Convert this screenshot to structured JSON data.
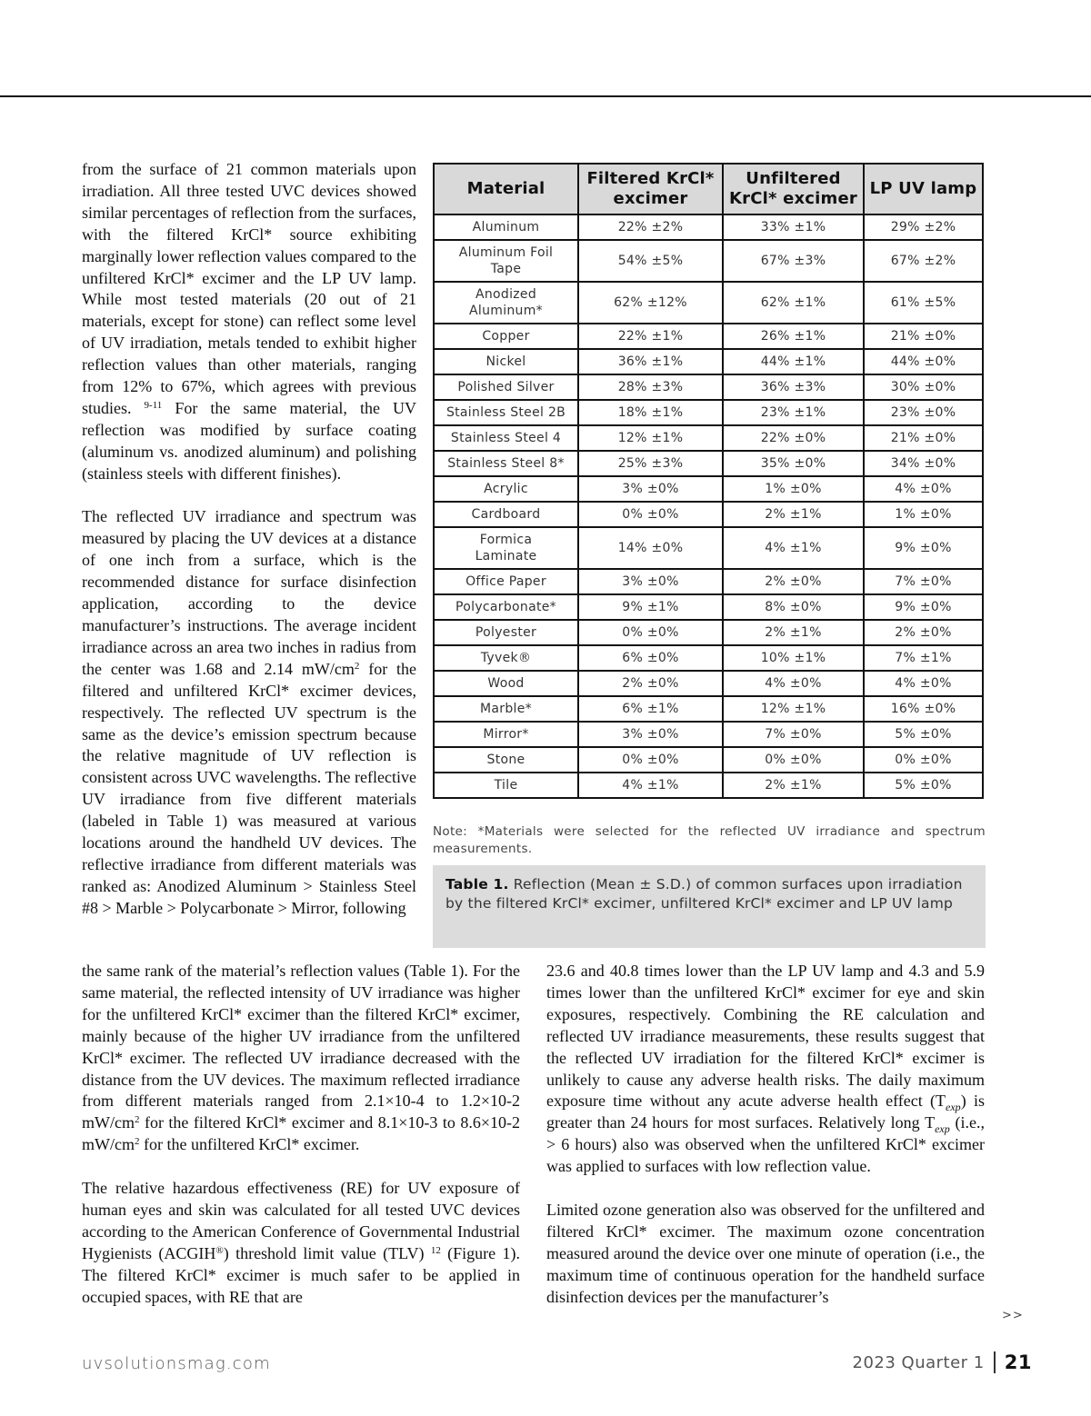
{
  "columns": {
    "colA": [
      [
        [
          "from the surface of 21 common materials upon irradiation. All three tested UVC devices showed similar percentages of reflection from the surfaces, with the filtered KrCl* source exhibiting marginally lower reflection values compared to the unfiltered KrCl* excimer and the LP UV lamp. While most tested materials (20 out of 21 materials, except for stone) can reflect some level of UV irradiation, metals tended to exhibit higher reflection values than other materials, ranging from 12% to 67%, which agrees with previous studies. ",
          ""
        ],
        [
          "9-11",
          "sup"
        ],
        [
          " For the same material, the UV reflection was modified by surface coating (aluminum vs. anodized aluminum) and polishing (stainless steels with different finishes).",
          ""
        ]
      ],
      [
        [
          "The reflected UV irradiance and spectrum was measured by placing the UV devices at a distance of one inch from a surface, which is the recommended distance for surface disinfection application, according to the device manufacturer’s instructions. The average incident irradiance across an area two inches in radius from the center was 1.68 and 2.14 mW/cm",
          ""
        ],
        [
          "2",
          "sup"
        ],
        [
          " for the filtered and unfiltered KrCl* excimer devices, respectively. The reflected UV spectrum is the same as the device’s emission spectrum because the relative magnitude of UV reflection is consistent across UVC wavelengths. The reflective UV irradiance from five different materials (labeled in Table 1) was measured at various locations around the handheld UV devices. The reflective irradiance from different materials was ranked as: Anodized Aluminum > Stainless Steel #8 > Marble > Polycarbonate > Mirror, following",
          ""
        ]
      ]
    ],
    "colB": [
      [
        [
          "the same rank of the material’s reflection values (Table 1). For the same material, the reflected intensity of UV irradiance was higher for the unfiltered KrCl* excimer than the filtered KrCl* excimer, mainly because of the higher UV irradiance from the unfiltered KrCl* excimer. The reflected UV irradiance decreased with the distance from the UV devices. The maximum reflected irradiance from different materials ranged from 2.1×10-4 to 1.2×10-2 mW/cm",
          ""
        ],
        [
          "2",
          "sup"
        ],
        [
          " for the filtered KrCl* excimer and 8.1×10-3 to 8.6×10-2 mW/cm",
          ""
        ],
        [
          "2",
          "sup"
        ],
        [
          " for the unfiltered KrCl* excimer.",
          ""
        ]
      ],
      [
        [
          "The relative hazardous effectiveness (RE) for UV exposure of human eyes and skin was calculated for all tested UVC devices according to the American Conference of Governmental Industrial Hygienists (ACGIH",
          ""
        ],
        [
          "®",
          "sup"
        ],
        [
          ") threshold limit value (TLV) ",
          ""
        ],
        [
          "12",
          "sup"
        ],
        [
          " (Figure 1). The filtered KrCl* excimer is much safer to be applied in occupied spaces, with RE that are",
          ""
        ]
      ]
    ],
    "colC": [
      [
        [
          "23.6 and 40.8 times lower than the LP UV lamp and 4.3 and 5.9 times lower than the unfiltered KrCl* excimer for eye and skin exposures, respectively. Combining the RE calculation and reflected UV irradiance measurements, these results suggest that the reflected UV irradiation for the filtered KrCl* excimer is unlikely to cause any adverse health risks. The daily maximum exposure time without any acute adverse health effect (T",
          ""
        ],
        [
          "exp",
          "sub"
        ],
        [
          ") is greater than 24 hours for most surfaces. Relatively long T",
          ""
        ],
        [
          "exp",
          "sub"
        ],
        [
          " (i.e., > 6 hours) also was observed when the unfiltered KrCl* excimer was applied to surfaces with low reflection value.",
          ""
        ]
      ],
      [
        [
          "Limited ozone generation also was observed for the unfiltered and filtered KrCl* excimer. The maximum ozone concentration measured around the device over one minute of operation (i.e., the maximum time of continuous operation for the handheld surface disinfection devices per the manufacturer’s",
          ""
        ]
      ]
    ]
  },
  "table": {
    "headers": [
      "Material",
      "Filtered KrCl* excimer",
      "Unfiltered KrCl* excimer",
      "LP UV lamp"
    ],
    "rows": [
      [
        "Aluminum",
        "22% ±2%",
        "33% ±1%",
        "29% ±2%"
      ],
      [
        "Aluminum Foil Tape",
        "54% ±5%",
        "67% ±3%",
        "67% ±2%"
      ],
      [
        "Anodized Aluminum*",
        "62% ±12%",
        "62% ±1%",
        "61% ±5%"
      ],
      [
        "Copper",
        "22% ±1%",
        "26% ±1%",
        "21% ±0%"
      ],
      [
        "Nickel",
        "36% ±1%",
        "44% ±1%",
        "44% ±0%"
      ],
      [
        "Polished Silver",
        "28% ±3%",
        "36% ±3%",
        "30% ±0%"
      ],
      [
        "Stainless Steel 2B",
        "18% ±1%",
        "23% ±1%",
        "23% ±0%"
      ],
      [
        "Stainless Steel 4",
        "12% ±1%",
        "22% ±0%",
        "21% ±0%"
      ],
      [
        "Stainless Steel 8*",
        "25% ±3%",
        "35% ±0%",
        "34% ±0%"
      ],
      [
        "Acrylic",
        "3% ±0%",
        "1% ±0%",
        "4% ±0%"
      ],
      [
        "Cardboard",
        "0% ±0%",
        "2% ±1%",
        "1% ±0%"
      ],
      [
        "Formica Laminate",
        "14% ±0%",
        "4% ±1%",
        "9% ±0%"
      ],
      [
        "Office Paper",
        "3% ±0%",
        "2% ±0%",
        "7% ±0%"
      ],
      [
        "Polycarbonate*",
        "9% ±1%",
        "8% ±0%",
        "9% ±0%"
      ],
      [
        "Polyester",
        "0% ±0%",
        "2% ±1%",
        "2% ±0%"
      ],
      [
        "Tyvek®",
        "6% ±0%",
        "10% ±1%",
        "7% ±1%"
      ],
      [
        "Wood",
        "2% ±0%",
        "4% ±0%",
        "4% ±0%"
      ],
      [
        "Marble*",
        "6% ±1%",
        "12% ±1%",
        "16% ±0%"
      ],
      [
        "Mirror*",
        "3% ±0%",
        "7% ±0%",
        "5% ±0%"
      ],
      [
        "Stone",
        "0% ±0%",
        "0% ±0%",
        "0% ±0%"
      ],
      [
        "Tile",
        "4% ±1%",
        "2% ±1%",
        "5% ±0%"
      ]
    ],
    "note": "Note: *Materials were selected for the reflected UV irradiance and spectrum measurements.",
    "caption_label": "Table 1.",
    "caption_text": " Reflection (Mean ± S.D.) of common surfaces upon irradiation by the filtered KrCl* excimer, unfiltered KrCl* excimer and LP UV lamp"
  },
  "continue_marker": ">>",
  "footer": {
    "site": "uvsolutionsmag.com",
    "issue": "2023 Quarter 1",
    "page": "21"
  }
}
